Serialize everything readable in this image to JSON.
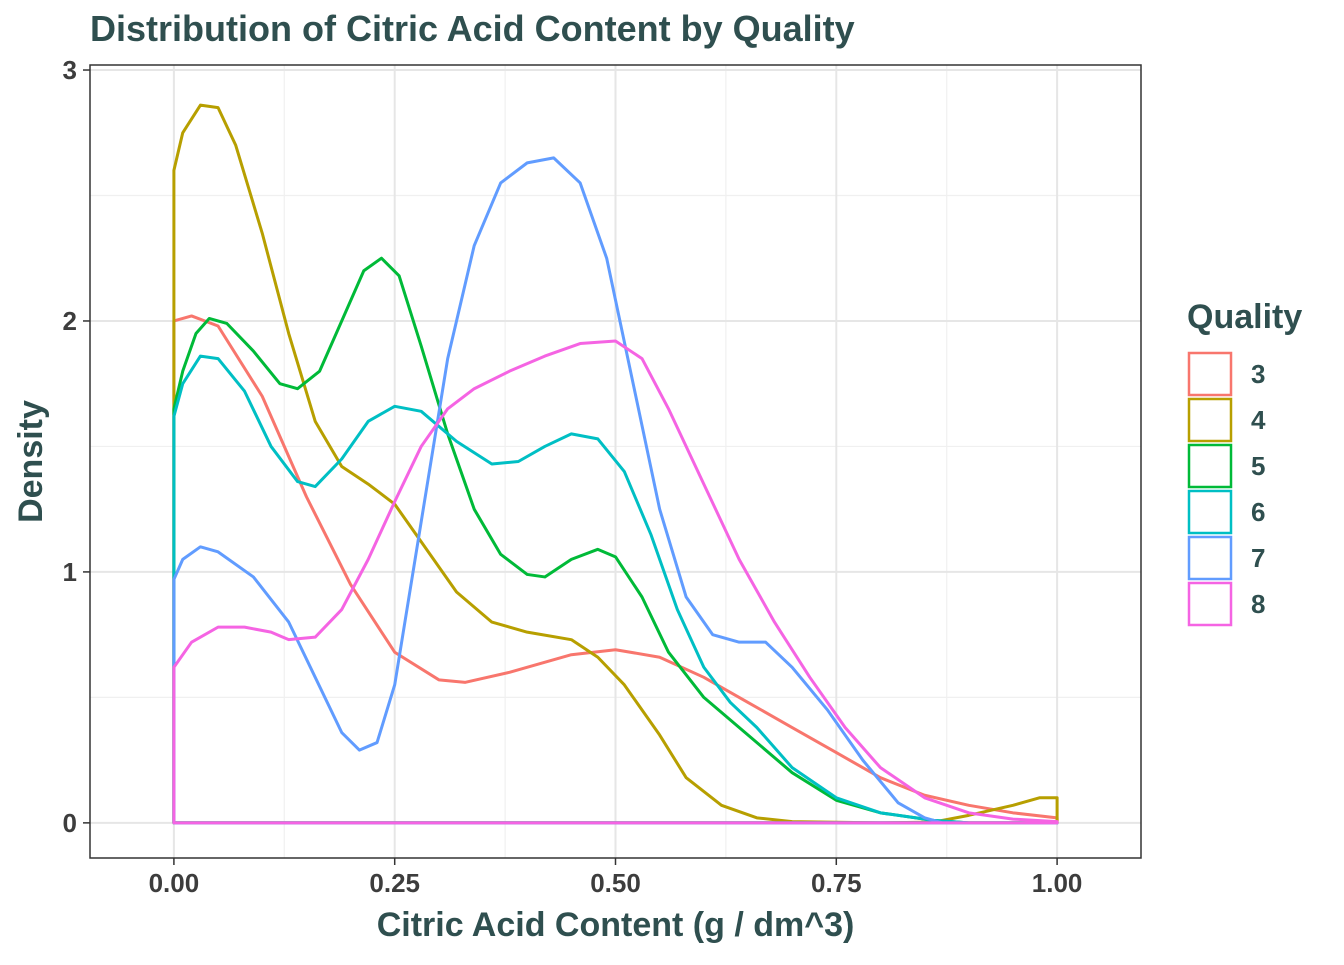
{
  "chart_data": {
    "type": "line",
    "title": "Distribution of Citric Acid Content by Quality",
    "xlabel": "Citric Acid Content (g / dm^3)",
    "ylabel": "Density",
    "xlim": [
      -0.095,
      1.095
    ],
    "ylim": [
      -0.14,
      3.02
    ],
    "x_ticks": [
      0,
      0.25,
      0.5,
      0.75,
      1
    ],
    "x_tick_labels": [
      "0.00",
      "0.25",
      "0.50",
      "0.75",
      "1.00"
    ],
    "y_ticks": [
      0,
      1,
      2,
      3
    ],
    "y_tick_labels": [
      "0",
      "1",
      "2",
      "3"
    ],
    "grid": true,
    "legend": {
      "title": "Quality",
      "position": "right"
    },
    "series": [
      {
        "name": "3",
        "color": "#F8766D",
        "points": [
          [
            0,
            0
          ],
          [
            0,
            2.0
          ],
          [
            0.02,
            2.02
          ],
          [
            0.05,
            1.98
          ],
          [
            0.1,
            1.7
          ],
          [
            0.15,
            1.3
          ],
          [
            0.2,
            0.95
          ],
          [
            0.25,
            0.68
          ],
          [
            0.3,
            0.57
          ],
          [
            0.33,
            0.56
          ],
          [
            0.38,
            0.6
          ],
          [
            0.45,
            0.67
          ],
          [
            0.5,
            0.69
          ],
          [
            0.55,
            0.66
          ],
          [
            0.6,
            0.58
          ],
          [
            0.65,
            0.48
          ],
          [
            0.7,
            0.38
          ],
          [
            0.75,
            0.28
          ],
          [
            0.8,
            0.18
          ],
          [
            0.85,
            0.11
          ],
          [
            0.9,
            0.07
          ],
          [
            0.95,
            0.04
          ],
          [
            1.0,
            0.02
          ],
          [
            1.0,
            0
          ]
        ]
      },
      {
        "name": "4",
        "color": "#B79F00",
        "points": [
          [
            0,
            0
          ],
          [
            0,
            2.6
          ],
          [
            0.01,
            2.75
          ],
          [
            0.03,
            2.86
          ],
          [
            0.05,
            2.85
          ],
          [
            0.07,
            2.7
          ],
          [
            0.1,
            2.35
          ],
          [
            0.13,
            1.95
          ],
          [
            0.16,
            1.6
          ],
          [
            0.19,
            1.42
          ],
          [
            0.22,
            1.35
          ],
          [
            0.25,
            1.27
          ],
          [
            0.28,
            1.12
          ],
          [
            0.32,
            0.92
          ],
          [
            0.36,
            0.8
          ],
          [
            0.4,
            0.76
          ],
          [
            0.45,
            0.73
          ],
          [
            0.48,
            0.66
          ],
          [
            0.51,
            0.55
          ],
          [
            0.55,
            0.35
          ],
          [
            0.58,
            0.18
          ],
          [
            0.62,
            0.07
          ],
          [
            0.66,
            0.02
          ],
          [
            0.7,
            0.005
          ],
          [
            0.8,
            0
          ],
          [
            0.86,
            0.003
          ],
          [
            0.9,
            0.03
          ],
          [
            0.95,
            0.07
          ],
          [
            0.98,
            0.1
          ],
          [
            1.0,
            0.1
          ],
          [
            1.0,
            0
          ]
        ]
      },
      {
        "name": "5",
        "color": "#00BA38",
        "points": [
          [
            0,
            0
          ],
          [
            0,
            1.65
          ],
          [
            0.01,
            1.8
          ],
          [
            0.025,
            1.95
          ],
          [
            0.04,
            2.01
          ],
          [
            0.06,
            1.99
          ],
          [
            0.09,
            1.88
          ],
          [
            0.12,
            1.75
          ],
          [
            0.14,
            1.73
          ],
          [
            0.165,
            1.8
          ],
          [
            0.19,
            2.0
          ],
          [
            0.215,
            2.2
          ],
          [
            0.235,
            2.25
          ],
          [
            0.255,
            2.18
          ],
          [
            0.28,
            1.9
          ],
          [
            0.31,
            1.55
          ],
          [
            0.34,
            1.25
          ],
          [
            0.37,
            1.07
          ],
          [
            0.4,
            0.99
          ],
          [
            0.42,
            0.98
          ],
          [
            0.45,
            1.05
          ],
          [
            0.48,
            1.09
          ],
          [
            0.5,
            1.06
          ],
          [
            0.53,
            0.9
          ],
          [
            0.56,
            0.68
          ],
          [
            0.6,
            0.5
          ],
          [
            0.65,
            0.35
          ],
          [
            0.7,
            0.2
          ],
          [
            0.75,
            0.09
          ],
          [
            0.8,
            0.04
          ],
          [
            0.86,
            0.01
          ],
          [
            0.9,
            0
          ],
          [
            1.0,
            0
          ]
        ]
      },
      {
        "name": "6",
        "color": "#00BFC4",
        "points": [
          [
            0,
            0
          ],
          [
            0,
            1.62
          ],
          [
            0.01,
            1.75
          ],
          [
            0.03,
            1.86
          ],
          [
            0.05,
            1.85
          ],
          [
            0.08,
            1.72
          ],
          [
            0.11,
            1.5
          ],
          [
            0.14,
            1.36
          ],
          [
            0.16,
            1.34
          ],
          [
            0.19,
            1.45
          ],
          [
            0.22,
            1.6
          ],
          [
            0.25,
            1.66
          ],
          [
            0.28,
            1.64
          ],
          [
            0.32,
            1.52
          ],
          [
            0.36,
            1.43
          ],
          [
            0.39,
            1.44
          ],
          [
            0.42,
            1.5
          ],
          [
            0.45,
            1.55
          ],
          [
            0.48,
            1.53
          ],
          [
            0.51,
            1.4
          ],
          [
            0.54,
            1.15
          ],
          [
            0.57,
            0.85
          ],
          [
            0.6,
            0.62
          ],
          [
            0.63,
            0.48
          ],
          [
            0.66,
            0.38
          ],
          [
            0.7,
            0.22
          ],
          [
            0.75,
            0.1
          ],
          [
            0.8,
            0.04
          ],
          [
            0.86,
            0.01
          ],
          [
            0.9,
            0
          ],
          [
            1.0,
            0
          ]
        ]
      },
      {
        "name": "7",
        "color": "#619CFF",
        "points": [
          [
            0,
            0
          ],
          [
            0,
            0.97
          ],
          [
            0.01,
            1.05
          ],
          [
            0.03,
            1.1
          ],
          [
            0.05,
            1.08
          ],
          [
            0.09,
            0.98
          ],
          [
            0.13,
            0.8
          ],
          [
            0.16,
            0.58
          ],
          [
            0.19,
            0.36
          ],
          [
            0.21,
            0.29
          ],
          [
            0.23,
            0.32
          ],
          [
            0.25,
            0.55
          ],
          [
            0.28,
            1.2
          ],
          [
            0.31,
            1.85
          ],
          [
            0.34,
            2.3
          ],
          [
            0.37,
            2.55
          ],
          [
            0.4,
            2.63
          ],
          [
            0.43,
            2.65
          ],
          [
            0.46,
            2.55
          ],
          [
            0.49,
            2.25
          ],
          [
            0.52,
            1.75
          ],
          [
            0.55,
            1.25
          ],
          [
            0.58,
            0.9
          ],
          [
            0.61,
            0.75
          ],
          [
            0.64,
            0.72
          ],
          [
            0.67,
            0.72
          ],
          [
            0.7,
            0.62
          ],
          [
            0.74,
            0.45
          ],
          [
            0.78,
            0.25
          ],
          [
            0.82,
            0.08
          ],
          [
            0.85,
            0.02
          ],
          [
            0.87,
            0
          ],
          [
            1.0,
            0
          ]
        ]
      },
      {
        "name": "8",
        "color": "#F564E3",
        "points": [
          [
            0,
            0
          ],
          [
            0,
            0.62
          ],
          [
            0.02,
            0.72
          ],
          [
            0.05,
            0.78
          ],
          [
            0.08,
            0.78
          ],
          [
            0.11,
            0.76
          ],
          [
            0.13,
            0.73
          ],
          [
            0.16,
            0.74
          ],
          [
            0.19,
            0.85
          ],
          [
            0.22,
            1.05
          ],
          [
            0.25,
            1.28
          ],
          [
            0.28,
            1.5
          ],
          [
            0.31,
            1.65
          ],
          [
            0.34,
            1.73
          ],
          [
            0.38,
            1.8
          ],
          [
            0.42,
            1.86
          ],
          [
            0.46,
            1.91
          ],
          [
            0.5,
            1.92
          ],
          [
            0.53,
            1.85
          ],
          [
            0.56,
            1.65
          ],
          [
            0.6,
            1.35
          ],
          [
            0.64,
            1.05
          ],
          [
            0.68,
            0.8
          ],
          [
            0.72,
            0.58
          ],
          [
            0.76,
            0.38
          ],
          [
            0.8,
            0.22
          ],
          [
            0.85,
            0.1
          ],
          [
            0.9,
            0.04
          ],
          [
            0.95,
            0.015
          ],
          [
            1.0,
            0.005
          ],
          [
            1.0,
            0
          ]
        ]
      }
    ]
  }
}
